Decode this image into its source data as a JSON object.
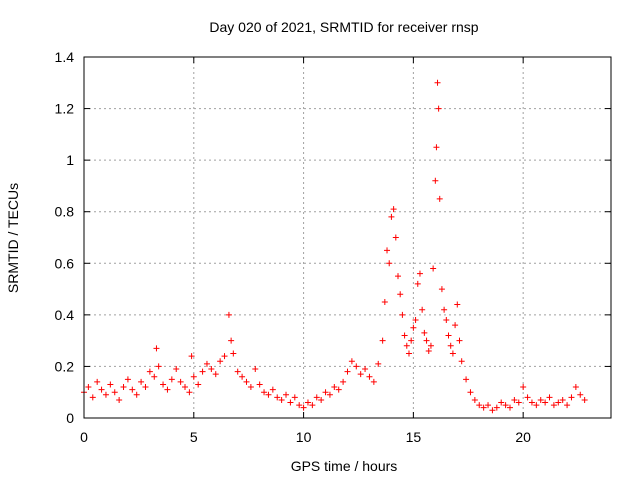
{
  "chart_data": {
    "type": "scatter",
    "title": "Day 020 of 2021, SRMTID for receiver rnsp",
    "xlabel": "GPS time / hours",
    "ylabel": "SRMTID / TECUs",
    "xlim": [
      0,
      24
    ],
    "ylim": [
      0,
      1.4
    ],
    "xticks": [
      0,
      5,
      10,
      15,
      20
    ],
    "xtick_labels": [
      "0",
      "5",
      "10",
      "15",
      "20"
    ],
    "yticks": [
      0,
      0.2,
      0.4,
      0.6,
      0.8,
      1.0,
      1.2,
      1.4
    ],
    "ytick_labels": [
      "0",
      "0.2",
      "0.4",
      "0.6",
      "0.8",
      "1",
      "1.2",
      "1.4"
    ],
    "grid": true,
    "marker": "+",
    "color": "#ff0000",
    "series": [
      {
        "name": "rnsp",
        "x": [
          0.0,
          0.2,
          0.4,
          0.6,
          0.8,
          1.0,
          1.2,
          1.4,
          1.6,
          1.8,
          2.0,
          2.2,
          2.4,
          2.6,
          2.8,
          3.0,
          3.2,
          3.3,
          3.4,
          3.6,
          3.8,
          4.0,
          4.2,
          4.4,
          4.6,
          4.8,
          4.9,
          5.0,
          5.2,
          5.4,
          5.6,
          5.8,
          6.0,
          6.2,
          6.4,
          6.6,
          6.7,
          6.8,
          7.0,
          7.2,
          7.4,
          7.6,
          7.8,
          8.0,
          8.2,
          8.4,
          8.6,
          8.8,
          9.0,
          9.2,
          9.4,
          9.6,
          9.8,
          10.0,
          10.2,
          10.4,
          10.6,
          10.8,
          11.0,
          11.2,
          11.4,
          11.6,
          11.8,
          12.0,
          12.2,
          12.4,
          12.6,
          12.8,
          13.0,
          13.2,
          13.4,
          13.6,
          13.7,
          13.8,
          13.9,
          14.0,
          14.1,
          14.2,
          14.3,
          14.4,
          14.5,
          14.6,
          14.7,
          14.8,
          14.9,
          15.0,
          15.1,
          15.2,
          15.3,
          15.4,
          15.5,
          15.6,
          15.7,
          15.8,
          15.9,
          16.0,
          16.05,
          16.1,
          16.15,
          16.2,
          16.3,
          16.4,
          16.5,
          16.6,
          16.7,
          16.8,
          16.9,
          17.0,
          17.1,
          17.2,
          17.4,
          17.6,
          17.8,
          18.0,
          18.2,
          18.4,
          18.6,
          18.8,
          19.0,
          19.2,
          19.4,
          19.6,
          19.8,
          20.0,
          20.2,
          20.4,
          20.6,
          20.8,
          21.0,
          21.2,
          21.4,
          21.6,
          21.8,
          22.0,
          22.2,
          22.4,
          22.6,
          22.8
        ],
        "y": [
          0.1,
          0.12,
          0.08,
          0.14,
          0.11,
          0.09,
          0.13,
          0.1,
          0.07,
          0.12,
          0.15,
          0.11,
          0.09,
          0.14,
          0.12,
          0.18,
          0.16,
          0.27,
          0.2,
          0.13,
          0.11,
          0.15,
          0.19,
          0.14,
          0.12,
          0.1,
          0.24,
          0.16,
          0.13,
          0.18,
          0.21,
          0.19,
          0.17,
          0.22,
          0.24,
          0.4,
          0.3,
          0.25,
          0.18,
          0.16,
          0.14,
          0.12,
          0.19,
          0.13,
          0.1,
          0.09,
          0.11,
          0.08,
          0.07,
          0.09,
          0.06,
          0.08,
          0.05,
          0.04,
          0.06,
          0.05,
          0.08,
          0.07,
          0.1,
          0.09,
          0.12,
          0.11,
          0.14,
          0.18,
          0.22,
          0.2,
          0.17,
          0.19,
          0.16,
          0.14,
          0.21,
          0.3,
          0.45,
          0.65,
          0.6,
          0.78,
          0.81,
          0.7,
          0.55,
          0.48,
          0.4,
          0.32,
          0.28,
          0.25,
          0.3,
          0.35,
          0.38,
          0.52,
          0.56,
          0.42,
          0.33,
          0.3,
          0.26,
          0.28,
          0.58,
          0.92,
          1.05,
          1.3,
          1.2,
          0.85,
          0.5,
          0.42,
          0.38,
          0.32,
          0.28,
          0.25,
          0.36,
          0.44,
          0.3,
          0.22,
          0.15,
          0.1,
          0.07,
          0.05,
          0.04,
          0.05,
          0.03,
          0.04,
          0.06,
          0.05,
          0.04,
          0.07,
          0.06,
          0.12,
          0.08,
          0.06,
          0.05,
          0.07,
          0.06,
          0.08,
          0.05,
          0.06,
          0.07,
          0.05,
          0.08,
          0.12,
          0.09,
          0.07
        ]
      }
    ]
  }
}
